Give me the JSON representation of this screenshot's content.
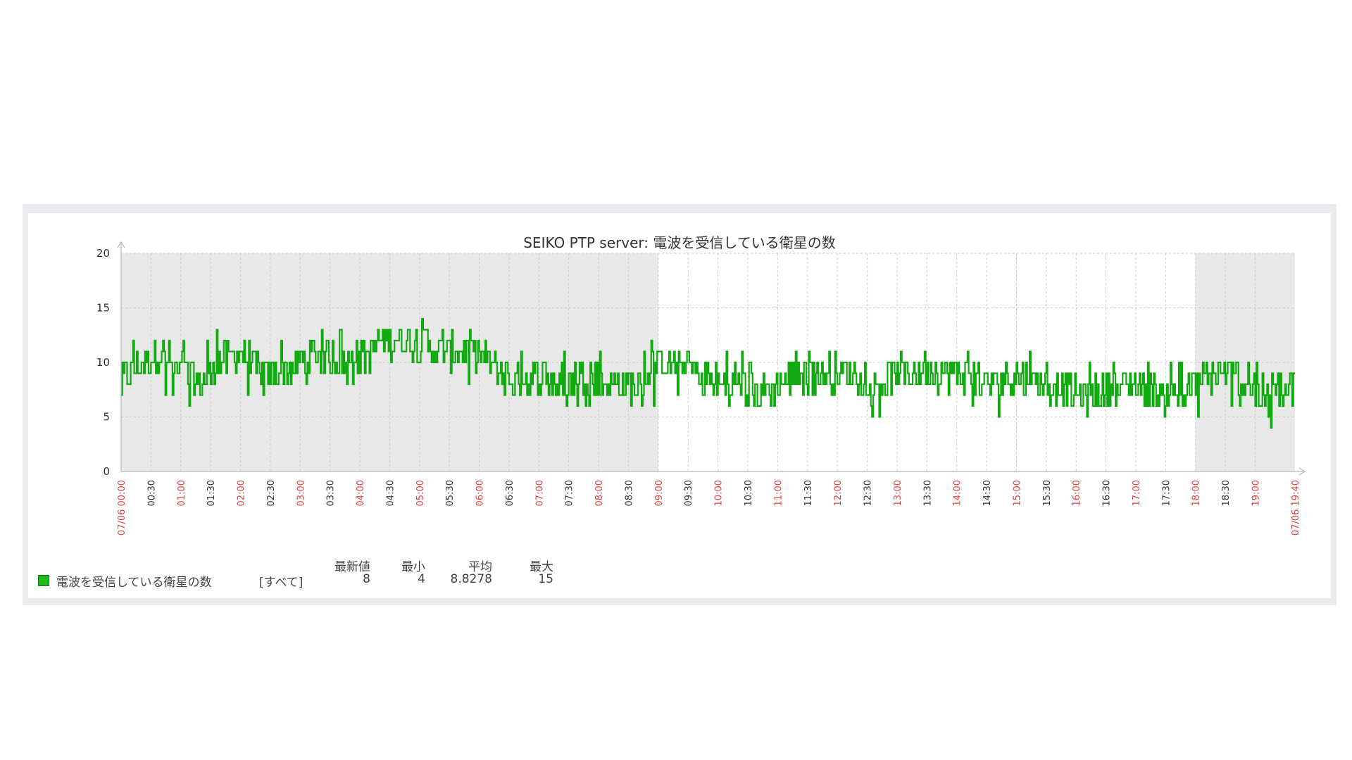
{
  "colors": {
    "series": "#1fbb1f",
    "series_stroke": "#11aa11",
    "spike": "#f2a0a0",
    "night_shade": "#e8e8e8",
    "grid": "#cccccc",
    "axis": "#b0b8c8",
    "tick_black": "#333333",
    "tick_red": "#e04040"
  },
  "chart_data": {
    "type": "line",
    "title": "SEIKO PTP server: 電波を受信している衛星の数",
    "xlabel": "",
    "ylabel": "",
    "ylim": [
      0,
      20
    ],
    "yticks": [
      0,
      5,
      10,
      15,
      20
    ],
    "xlim": [
      "07/06 00:00",
      "07/06 19:40"
    ],
    "x_start_label": "07/06 00:00",
    "x_end_label": "07/06 19:40",
    "xticks": [
      "00:30",
      "01:00",
      "01:30",
      "02:00",
      "02:30",
      "03:00",
      "03:30",
      "04:00",
      "04:30",
      "05:00",
      "05:30",
      "06:00",
      "06:30",
      "07:00",
      "07:30",
      "08:00",
      "08:30",
      "09:00",
      "09:30",
      "10:00",
      "10:30",
      "11:00",
      "11:30",
      "12:00",
      "12:30",
      "13:00",
      "13:30",
      "14:00",
      "14:30",
      "15:00",
      "15:30",
      "16:00",
      "16:30",
      "17:00",
      "17:30",
      "18:00",
      "18:30",
      "19:00"
    ],
    "shaded_ranges": [
      [
        "00:00",
        "09:00"
      ],
      [
        "18:00",
        "19:40"
      ]
    ],
    "grid": true,
    "legend_position": "bottom-left",
    "series": [
      {
        "name": "電波を受信している衛星の数",
        "x": [
          "00:00",
          "00:20",
          "00:40",
          "01:00",
          "01:20",
          "01:40",
          "02:00",
          "02:20",
          "02:40",
          "03:00",
          "03:20",
          "03:40",
          "04:00",
          "04:20",
          "04:40",
          "05:00",
          "05:20",
          "05:40",
          "06:00",
          "06:20",
          "06:40",
          "07:00",
          "07:20",
          "07:40",
          "08:00",
          "08:20",
          "08:40",
          "09:00",
          "09:20",
          "09:40",
          "10:00",
          "10:20",
          "10:40",
          "11:00",
          "11:20",
          "11:40",
          "12:00",
          "12:20",
          "12:40",
          "13:00",
          "13:20",
          "13:40",
          "14:00",
          "14:20",
          "14:40",
          "15:00",
          "15:20",
          "15:40",
          "16:00",
          "16:20",
          "16:40",
          "17:00",
          "17:20",
          "17:40",
          "18:00",
          "18:20",
          "18:40",
          "19:00",
          "19:20",
          "19:40"
        ],
        "values": [
          8,
          10,
          11,
          9,
          8,
          10,
          11,
          9,
          9,
          10,
          11,
          10,
          10,
          12,
          12,
          12,
          11,
          11,
          11,
          9,
          8,
          9,
          8,
          9,
          8,
          8,
          8,
          10,
          10,
          9,
          8,
          8,
          7,
          8,
          9,
          9,
          9,
          9,
          8,
          9,
          9,
          9,
          9,
          8,
          8,
          9,
          8,
          8,
          7,
          7,
          8,
          8,
          7,
          7,
          8,
          9,
          9,
          7,
          7,
          8
        ],
        "min": [
          5,
          7,
          7,
          5,
          7,
          7,
          7,
          6,
          7,
          8,
          8,
          8,
          8,
          9,
          9,
          10,
          8,
          8,
          8,
          6,
          5,
          7,
          6,
          6,
          6,
          6,
          6,
          6,
          6,
          6,
          6,
          6,
          4,
          5,
          6,
          7,
          6,
          7,
          4,
          7,
          6,
          7,
          6,
          5,
          5,
          5,
          4,
          5,
          5,
          5,
          6,
          6,
          5,
          6,
          5,
          5,
          5,
          5,
          4,
          6
        ],
        "max": [
          12,
          13,
          13,
          12,
          12,
          13,
          13,
          11,
          12,
          13,
          13,
          13,
          12,
          14,
          15,
          14,
          14,
          13,
          13,
          11,
          11,
          11,
          11,
          11,
          11,
          11,
          11,
          14,
          11,
          11,
          11,
          11,
          10,
          11,
          11,
          12,
          12,
          11,
          11,
          11,
          11,
          11,
          11,
          11,
          11,
          11,
          11,
          11,
          11,
          10,
          10,
          10,
          10,
          10,
          11,
          11,
          10,
          10,
          10,
          10
        ]
      }
    ],
    "legend_table": {
      "series_name": "電波を受信している衛星の数",
      "scope": "[すべて]",
      "headers": [
        "最新値",
        "最小",
        "平均",
        "最大"
      ],
      "values": [
        "8",
        "4",
        "8.8278",
        "15"
      ]
    }
  }
}
